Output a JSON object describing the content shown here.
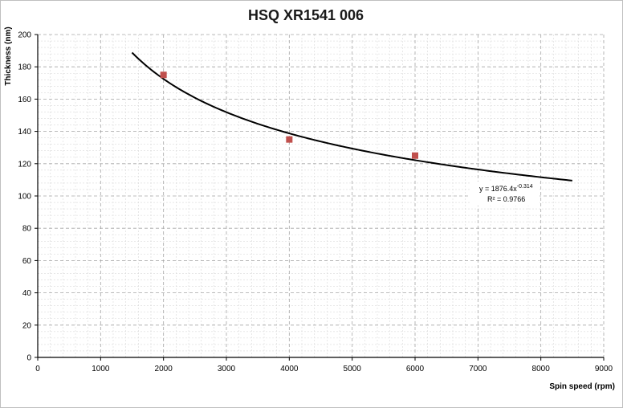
{
  "chart_data": {
    "type": "scatter",
    "title": "HSQ XR1541 006",
    "xlabel": "Spin speed (rpm)",
    "ylabel": "Thickness (nm)",
    "xlim": [
      0,
      9000
    ],
    "ylim": [
      0,
      200
    ],
    "x_major_ticks": [
      0,
      1000,
      2000,
      3000,
      4000,
      5000,
      6000,
      7000,
      8000,
      9000
    ],
    "y_major_ticks": [
      0,
      20,
      40,
      60,
      80,
      100,
      120,
      140,
      160,
      180,
      200
    ],
    "grid": true,
    "series": [
      {
        "type": "scatter",
        "marker": "square",
        "color": "#c0504d",
        "points": [
          {
            "x": 2000,
            "y": 175
          },
          {
            "x": 4000,
            "y": 135
          },
          {
            "x": 6000,
            "y": 125
          }
        ]
      },
      {
        "type": "line",
        "color": "#000000",
        "fit": "power",
        "coefficient": 1876.4,
        "exponent": -0.314,
        "x_range": [
          1500,
          8500
        ]
      }
    ],
    "annotation": {
      "equation_prefix": "y = 1876.4x",
      "equation_exponent": "-0.314",
      "r_squared": "R² = 0.9766"
    }
  }
}
